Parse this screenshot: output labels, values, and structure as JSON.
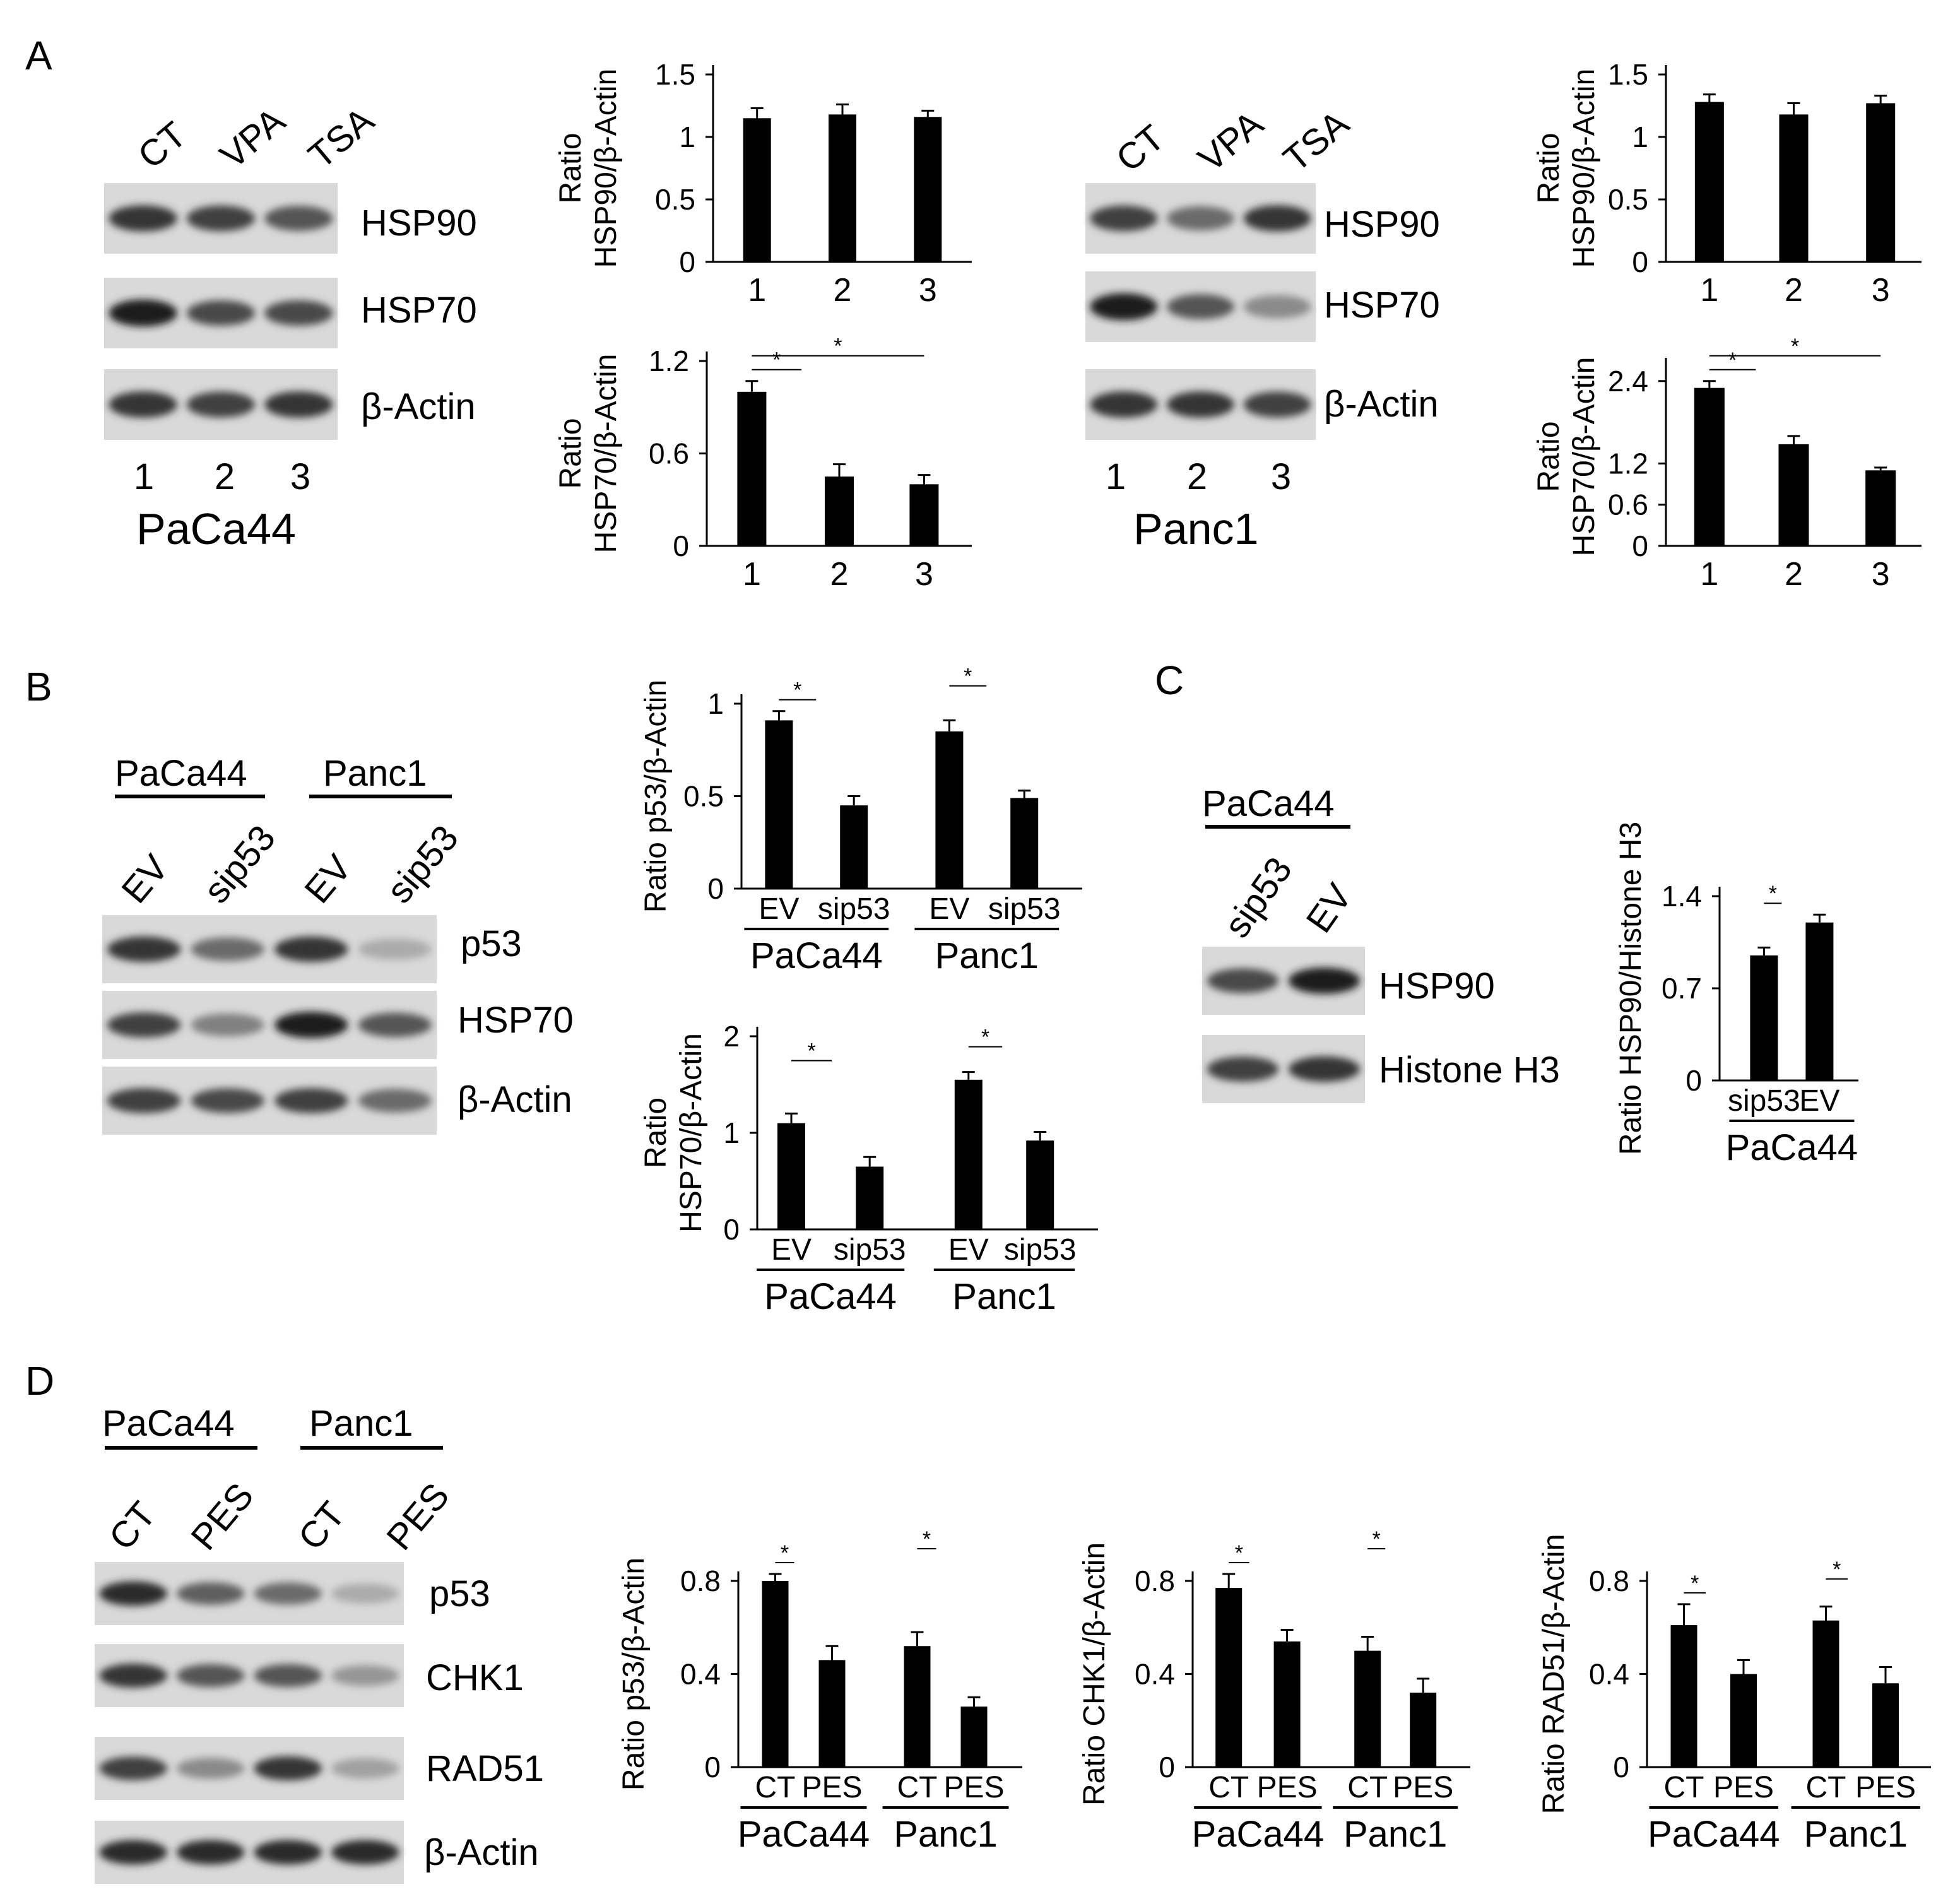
{
  "panels": {
    "A": {
      "label": "A",
      "blot_paca44": {
        "lanes": [
          "CT",
          "VPA",
          "TSA"
        ],
        "bands": [
          "HSP90",
          "HSP70",
          "β-Actin"
        ],
        "numbers": [
          "1",
          "2",
          "3"
        ],
        "cell": "PaCa44",
        "intensity": {
          "HSP90": [
            0.85,
            0.8,
            0.7
          ],
          "HSP70": [
            0.95,
            0.75,
            0.75
          ],
          "β-Actin": [
            0.85,
            0.8,
            0.85
          ]
        }
      },
      "blot_panc1": {
        "lanes": [
          "CT",
          "VPA",
          "TSA"
        ],
        "bands": [
          "HSP90",
          "HSP70",
          "β-Actin"
        ],
        "numbers": [
          "1",
          "2",
          "3"
        ],
        "cell": "Panc1",
        "intensity": {
          "HSP90": [
            0.8,
            0.6,
            0.85
          ],
          "HSP70": [
            0.95,
            0.7,
            0.45
          ],
          "β-Actin": [
            0.85,
            0.85,
            0.8
          ]
        }
      }
    },
    "B": {
      "label": "B",
      "blot": {
        "groups": [
          "PaCa44",
          "Panc1"
        ],
        "lanes": [
          "EV",
          "sip53",
          "EV",
          "sip53"
        ],
        "bands": [
          "p53",
          "HSP70",
          "β-Actin"
        ],
        "intensity": {
          "p53": [
            0.85,
            0.6,
            0.85,
            0.3
          ],
          "HSP70": [
            0.8,
            0.5,
            0.95,
            0.7
          ],
          "β-Actin": [
            0.8,
            0.75,
            0.8,
            0.6
          ]
        }
      }
    },
    "C": {
      "label": "C",
      "blot": {
        "group": "PaCa44",
        "lanes": [
          "sip53",
          "EV"
        ],
        "bands": [
          "HSP90",
          "Histone H3"
        ],
        "intensity": {
          "HSP90": [
            0.75,
            0.95
          ],
          "Histone H3": [
            0.8,
            0.85
          ]
        }
      }
    },
    "D": {
      "label": "D",
      "blot": {
        "groups": [
          "PaCa44",
          "Panc1"
        ],
        "lanes": [
          "CT",
          "PES",
          "CT",
          "PES"
        ],
        "bands": [
          "p53",
          "CHK1",
          "RAD51",
          "β-Actin"
        ],
        "intensity": {
          "p53": [
            0.9,
            0.65,
            0.6,
            0.3
          ],
          "CHK1": [
            0.85,
            0.7,
            0.7,
            0.4
          ],
          "RAD51": [
            0.8,
            0.45,
            0.85,
            0.35
          ],
          "β-Actin": [
            0.9,
            0.9,
            0.9,
            0.9
          ]
        }
      }
    }
  },
  "chart_data": [
    {
      "id": "a1",
      "type": "bar",
      "ylabel": [
        "Ratio",
        "HSP90/β-Actin"
      ],
      "categories": [
        "1",
        "2",
        "3"
      ],
      "values": [
        1.15,
        1.18,
        1.16
      ],
      "errors": [
        0.08,
        0.08,
        0.05
      ],
      "ylim": [
        0,
        1.5
      ],
      "yticks": [
        "0",
        "0.5",
        "1",
        "1.5"
      ],
      "ytick_values": [
        0,
        0.5,
        1,
        1.5
      ],
      "groups": [],
      "significance": []
    },
    {
      "id": "a2",
      "type": "bar",
      "ylabel": [
        "Ratio",
        "HSP70/β-Actin"
      ],
      "categories": [
        "1",
        "2",
        "3"
      ],
      "values": [
        1.0,
        0.45,
        0.4
      ],
      "errors": [
        0.07,
        0.08,
        0.06
      ],
      "ylim": [
        0,
        1.2
      ],
      "yticks": [
        "0",
        "0.6",
        "1.2"
      ],
      "ytick_values": [
        0,
        0.6,
        1.2
      ],
      "groups": [],
      "significance": [
        {
          "from": 0,
          "to": 1,
          "label": "*"
        },
        {
          "from": 0,
          "to": 2,
          "label": "*"
        }
      ]
    },
    {
      "id": "a3",
      "type": "bar",
      "ylabel": [
        "Ratio",
        "HSP90/β-Actin"
      ],
      "categories": [
        "1",
        "2",
        "3"
      ],
      "values": [
        1.28,
        1.18,
        1.27
      ],
      "errors": [
        0.06,
        0.09,
        0.06
      ],
      "ylim": [
        0,
        1.5
      ],
      "yticks": [
        "0",
        "0.5",
        "1",
        "1.5"
      ],
      "ytick_values": [
        0,
        0.5,
        1,
        1.5
      ],
      "groups": [],
      "significance": []
    },
    {
      "id": "a4",
      "type": "bar",
      "ylabel": [
        "Ratio",
        "HSP70/β-Actin"
      ],
      "categories": [
        "1",
        "2",
        "3"
      ],
      "values": [
        2.3,
        1.48,
        1.1
      ],
      "errors": [
        0.1,
        0.12,
        0.04
      ],
      "ylim": [
        0,
        2.6
      ],
      "yticks": [
        "0",
        "0.6",
        "1.2",
        "2.4"
      ],
      "ytick_values": [
        0,
        0.6,
        1.2,
        2.4
      ],
      "groups": [],
      "significance": [
        {
          "from": 0,
          "to": 1,
          "label": "*"
        },
        {
          "from": 0,
          "to": 2,
          "label": "*"
        }
      ]
    },
    {
      "id": "b1",
      "type": "bar",
      "ylabel": [
        "Ratio p53/β-Actin"
      ],
      "categories": [
        "EV",
        "sip53",
        "EV",
        "sip53"
      ],
      "values": [
        0.91,
        0.45,
        0.85,
        0.49
      ],
      "errors": [
        0.05,
        0.05,
        0.06,
        0.04
      ],
      "ylim": [
        0,
        1
      ],
      "yticks": [
        "0",
        "0.5",
        "1"
      ],
      "ytick_values": [
        0,
        0.5,
        1
      ],
      "groups": [
        "PaCa44",
        "Panc1"
      ],
      "significance": [
        {
          "from": 0,
          "to": 1,
          "label": "*"
        },
        {
          "from": 2,
          "to": 3,
          "label": "*"
        }
      ]
    },
    {
      "id": "b2",
      "type": "bar",
      "ylabel": [
        "Ratio",
        "HSP70/β-Actin"
      ],
      "categories": [
        "EV",
        "sip53",
        "EV",
        "sip53"
      ],
      "values": [
        1.1,
        0.65,
        1.55,
        0.92
      ],
      "errors": [
        0.1,
        0.1,
        0.08,
        0.09
      ],
      "ylim": [
        0,
        2
      ],
      "yticks": [
        "0",
        "1",
        "2"
      ],
      "ytick_values": [
        0,
        1,
        2
      ],
      "groups": [
        "PaCa44",
        "Panc1"
      ],
      "significance": [
        {
          "from": 0,
          "to": 1,
          "label": "*"
        },
        {
          "from": 2,
          "to": 3,
          "label": "*"
        }
      ]
    },
    {
      "id": "c1",
      "type": "bar",
      "ylabel": [
        "Ratio HSP90/Histone H3"
      ],
      "categories": [
        "sip53",
        "EV"
      ],
      "values": [
        0.95,
        1.2
      ],
      "errors": [
        0.06,
        0.06
      ],
      "ylim": [
        0,
        1.4
      ],
      "yticks": [
        "0",
        "0.7",
        "1.4"
      ],
      "ytick_values": [
        0,
        0.7,
        1.4
      ],
      "groups": [
        "PaCa44"
      ],
      "significance": [
        {
          "from": 0,
          "to": 1,
          "label": "*"
        }
      ]
    },
    {
      "id": "d1",
      "type": "bar",
      "ylabel": [
        "Ratio p53/β-Actin"
      ],
      "categories": [
        "CT",
        "PES",
        "CT",
        "PES"
      ],
      "values": [
        0.8,
        0.46,
        0.52,
        0.26
      ],
      "errors": [
        0.03,
        0.06,
        0.06,
        0.04
      ],
      "ylim": [
        0,
        0.8
      ],
      "yticks": [
        "0",
        "0.4",
        "0.8"
      ],
      "ytick_values": [
        0,
        0.4,
        0.8
      ],
      "groups": [
        "PaCa44",
        "Panc1"
      ],
      "significance": [
        {
          "from": 0,
          "to": 1,
          "label": "*"
        },
        {
          "from": 2,
          "to": 3,
          "label": "*"
        }
      ]
    },
    {
      "id": "d2",
      "type": "bar",
      "ylabel": [
        "Ratio CHK1/β-Actin"
      ],
      "categories": [
        "CT",
        "PES",
        "CT",
        "PES"
      ],
      "values": [
        0.77,
        0.54,
        0.5,
        0.32
      ],
      "errors": [
        0.06,
        0.05,
        0.06,
        0.06
      ],
      "ylim": [
        0,
        0.8
      ],
      "yticks": [
        "0",
        "0.4",
        "0.8"
      ],
      "ytick_values": [
        0,
        0.4,
        0.8
      ],
      "groups": [
        "PaCa44",
        "Panc1"
      ],
      "significance": [
        {
          "from": 0,
          "to": 1,
          "label": "*"
        },
        {
          "from": 2,
          "to": 3,
          "label": "*"
        }
      ]
    },
    {
      "id": "d3",
      "type": "bar",
      "ylabel": [
        "Ratio RAD51/β-Actin"
      ],
      "categories": [
        "CT",
        "PES",
        "CT",
        "PES"
      ],
      "values": [
        0.61,
        0.4,
        0.63,
        0.36
      ],
      "errors": [
        0.09,
        0.06,
        0.06,
        0.07
      ],
      "ylim": [
        0,
        0.8
      ],
      "yticks": [
        "0",
        "0.4",
        "0.8"
      ],
      "ytick_values": [
        0,
        0.4,
        0.8
      ],
      "groups": [
        "PaCa44",
        "Panc1"
      ],
      "significance": [
        {
          "from": 0,
          "to": 1,
          "label": "*"
        },
        {
          "from": 2,
          "to": 3,
          "label": "*"
        }
      ]
    }
  ]
}
